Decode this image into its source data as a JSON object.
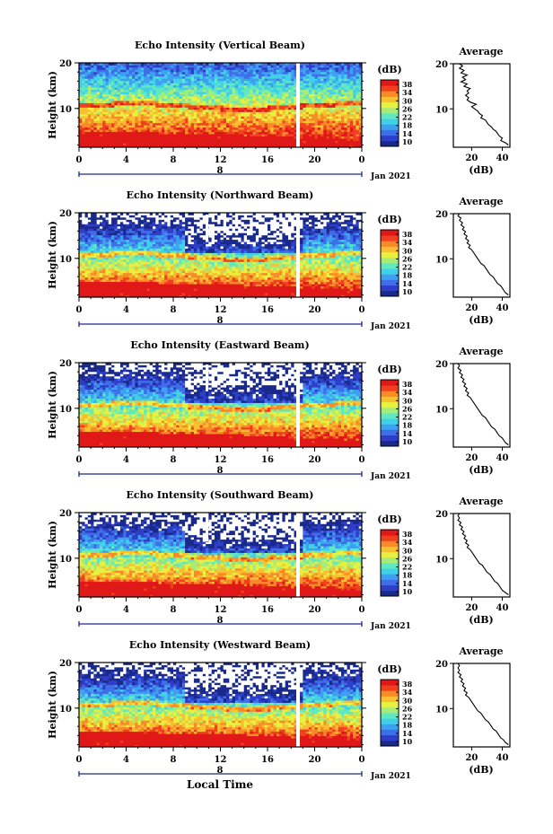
{
  "chart_data": [
    {
      "type": "heatmap",
      "title": "Echo Intensity (Vertical Beam)",
      "ylabel": "Height (km)",
      "y_ticks": [
        "20",
        "10"
      ],
      "x_ticks": [
        "0",
        "4",
        "8",
        "12",
        "16",
        "20",
        "0"
      ],
      "date_marker": "8",
      "date_label": "Jan 2021",
      "colorbar_label": "(dB)",
      "colorbar_ticks": [
        "38",
        "34",
        "30",
        "26",
        "22",
        "18",
        "14",
        "10"
      ],
      "profile": {
        "title": "Average",
        "xlabel": "(dB)",
        "x_ticks": [
          "20",
          "40"
        ],
        "y_ticks": [
          "20",
          "10"
        ],
        "xlim": [
          8,
          45
        ],
        "ylim": [
          1.5,
          20
        ],
        "points": [
          [
            12,
            20
          ],
          [
            14,
            19.5
          ],
          [
            12,
            19
          ],
          [
            15,
            18.5
          ],
          [
            13,
            18
          ],
          [
            17,
            17.5
          ],
          [
            14,
            17
          ],
          [
            16,
            16.5
          ],
          [
            13,
            16
          ],
          [
            17,
            15.5
          ],
          [
            15,
            15
          ],
          [
            19,
            14.5
          ],
          [
            17,
            14
          ],
          [
            18,
            13.5
          ],
          [
            16,
            13
          ],
          [
            18,
            12.5
          ],
          [
            17,
            12
          ],
          [
            19,
            11.5
          ],
          [
            23,
            11
          ],
          [
            20,
            10.5
          ],
          [
            22,
            10
          ],
          [
            24,
            9.5
          ],
          [
            25,
            9
          ],
          [
            27,
            8.5
          ],
          [
            26,
            8
          ],
          [
            29,
            7.5
          ],
          [
            30,
            7
          ],
          [
            31,
            6.5
          ],
          [
            33,
            6
          ],
          [
            34,
            5.5
          ],
          [
            36,
            5
          ],
          [
            37,
            4.5
          ],
          [
            38,
            4
          ],
          [
            40,
            3.5
          ],
          [
            39,
            3
          ],
          [
            42,
            2.5
          ],
          [
            44,
            2
          ]
        ]
      }
    },
    {
      "type": "heatmap",
      "title": "Echo Intensity (Northward Beam)",
      "ylabel": "Height (km)",
      "y_ticks": [
        "20",
        "10"
      ],
      "x_ticks": [
        "0",
        "4",
        "8",
        "12",
        "16",
        "20",
        "0"
      ],
      "date_marker": "8",
      "date_label": "Jan 2021",
      "colorbar_label": "(dB)",
      "colorbar_ticks": [
        "38",
        "34",
        "30",
        "26",
        "22",
        "18",
        "14",
        "10"
      ],
      "profile": {
        "title": "Average",
        "xlabel": "(dB)",
        "x_ticks": [
          "20",
          "40"
        ],
        "y_ticks": [
          "20",
          "10"
        ],
        "xlim": [
          8,
          45
        ],
        "ylim": [
          1.5,
          20
        ],
        "points": [
          [
            12,
            20
          ],
          [
            11,
            19.5
          ],
          [
            13,
            19
          ],
          [
            12,
            18.5
          ],
          [
            14,
            18
          ],
          [
            13,
            17.5
          ],
          [
            15,
            17
          ],
          [
            14,
            16.5
          ],
          [
            16,
            16
          ],
          [
            15,
            15.5
          ],
          [
            17,
            15
          ],
          [
            16,
            14.5
          ],
          [
            18,
            14
          ],
          [
            17,
            13.5
          ],
          [
            19,
            13
          ],
          [
            18,
            12.5
          ],
          [
            20,
            12
          ],
          [
            21,
            11.5
          ],
          [
            22,
            11
          ],
          [
            23,
            10.5
          ],
          [
            24,
            10
          ],
          [
            25,
            9.5
          ],
          [
            26,
            9
          ],
          [
            28,
            8.5
          ],
          [
            29,
            8
          ],
          [
            30,
            7.5
          ],
          [
            31,
            7
          ],
          [
            32,
            6.5
          ],
          [
            34,
            6
          ],
          [
            35,
            5.5
          ],
          [
            36,
            5
          ],
          [
            37,
            4.5
          ],
          [
            39,
            4
          ],
          [
            40,
            3.5
          ],
          [
            41,
            3
          ],
          [
            42,
            2.5
          ],
          [
            44,
            2
          ]
        ]
      }
    },
    {
      "type": "heatmap",
      "title": "Echo Intensity (Eastward Beam)",
      "ylabel": "Height (km)",
      "y_ticks": [
        "20",
        "10"
      ],
      "x_ticks": [
        "0",
        "4",
        "8",
        "12",
        "16",
        "20",
        "0"
      ],
      "date_marker": "8",
      "date_label": "Jan 2021",
      "colorbar_label": "(dB)",
      "colorbar_ticks": [
        "38",
        "34",
        "30",
        "26",
        "22",
        "18",
        "14",
        "10"
      ],
      "profile": {
        "title": "Average",
        "xlabel": "(dB)",
        "x_ticks": [
          "20",
          "40"
        ],
        "y_ticks": [
          "20",
          "10"
        ],
        "xlim": [
          8,
          45
        ],
        "ylim": [
          1.5,
          20
        ],
        "points": [
          [
            11,
            20
          ],
          [
            12,
            19.5
          ],
          [
            11,
            19
          ],
          [
            13,
            18.5
          ],
          [
            12,
            18
          ],
          [
            14,
            17.5
          ],
          [
            13,
            17
          ],
          [
            15,
            16.5
          ],
          [
            14,
            16
          ],
          [
            16,
            15.5
          ],
          [
            15,
            15
          ],
          [
            17,
            14.5
          ],
          [
            16,
            14
          ],
          [
            18,
            13.5
          ],
          [
            17,
            13
          ],
          [
            19,
            12.5
          ],
          [
            20,
            12
          ],
          [
            21,
            11.5
          ],
          [
            22,
            11
          ],
          [
            23,
            10.5
          ],
          [
            24,
            10
          ],
          [
            25,
            9.5
          ],
          [
            26,
            9
          ],
          [
            27,
            8.5
          ],
          [
            29,
            8
          ],
          [
            30,
            7.5
          ],
          [
            31,
            7
          ],
          [
            32,
            6.5
          ],
          [
            33,
            6
          ],
          [
            35,
            5.5
          ],
          [
            36,
            5
          ],
          [
            37,
            4.5
          ],
          [
            38,
            4
          ],
          [
            40,
            3.5
          ],
          [
            41,
            3
          ],
          [
            42,
            2.5
          ],
          [
            44,
            2
          ]
        ]
      }
    },
    {
      "type": "heatmap",
      "title": "Echo Intensity (Southward Beam)",
      "ylabel": "Height (km)",
      "y_ticks": [
        "20",
        "10"
      ],
      "x_ticks": [
        "0",
        "4",
        "8",
        "12",
        "16",
        "20",
        "0"
      ],
      "date_marker": "8",
      "date_label": "Jan 2021",
      "colorbar_label": "(dB)",
      "colorbar_ticks": [
        "38",
        "34",
        "30",
        "26",
        "22",
        "18",
        "14",
        "10"
      ],
      "profile": {
        "title": "Average",
        "xlabel": "(dB)",
        "x_ticks": [
          "20",
          "40"
        ],
        "y_ticks": [
          "20",
          "10"
        ],
        "xlim": [
          8,
          45
        ],
        "ylim": [
          1.5,
          20
        ],
        "points": [
          [
            12,
            20
          ],
          [
            11,
            19.5
          ],
          [
            12,
            19
          ],
          [
            11,
            18.5
          ],
          [
            13,
            18
          ],
          [
            12,
            17.5
          ],
          [
            14,
            17
          ],
          [
            13,
            16.5
          ],
          [
            15,
            16
          ],
          [
            14,
            15.5
          ],
          [
            16,
            15
          ],
          [
            15,
            14.5
          ],
          [
            17,
            14
          ],
          [
            16,
            13.5
          ],
          [
            18,
            13
          ],
          [
            17,
            12.5
          ],
          [
            19,
            12
          ],
          [
            20,
            11.5
          ],
          [
            21,
            11
          ],
          [
            22,
            10.5
          ],
          [
            23,
            10
          ],
          [
            24,
            9.5
          ],
          [
            25,
            9
          ],
          [
            27,
            8.5
          ],
          [
            28,
            8
          ],
          [
            29,
            7.5
          ],
          [
            30,
            7
          ],
          [
            32,
            6.5
          ],
          [
            33,
            6
          ],
          [
            34,
            5.5
          ],
          [
            35,
            5
          ],
          [
            37,
            4.5
          ],
          [
            38,
            4
          ],
          [
            39,
            3.5
          ],
          [
            40,
            3
          ],
          [
            42,
            2.5
          ],
          [
            44,
            2
          ]
        ]
      }
    },
    {
      "type": "heatmap",
      "title": "Echo Intensity (Westward Beam)",
      "ylabel": "Height (km)",
      "y_ticks": [
        "20",
        "10"
      ],
      "x_ticks": [
        "0",
        "4",
        "8",
        "12",
        "16",
        "20",
        "0"
      ],
      "date_marker": "8",
      "date_label": "Jan 2021",
      "colorbar_label": "(dB)",
      "colorbar_ticks": [
        "38",
        "34",
        "30",
        "26",
        "22",
        "18",
        "14",
        "10"
      ],
      "profile": {
        "title": "Average",
        "xlabel": "(dB)",
        "x_ticks": [
          "20",
          "40"
        ],
        "y_ticks": [
          "20",
          "10"
        ],
        "xlim": [
          8,
          45
        ],
        "ylim": [
          1.5,
          20
        ],
        "points": [
          [
            11,
            20
          ],
          [
            12,
            19.5
          ],
          [
            11,
            19
          ],
          [
            12,
            18.5
          ],
          [
            11,
            18
          ],
          [
            13,
            17.5
          ],
          [
            12,
            17
          ],
          [
            14,
            16.5
          ],
          [
            13,
            16
          ],
          [
            15,
            15.5
          ],
          [
            14,
            15
          ],
          [
            16,
            14.5
          ],
          [
            15,
            14
          ],
          [
            17,
            13.5
          ],
          [
            16,
            13
          ],
          [
            18,
            12.5
          ],
          [
            19,
            12
          ],
          [
            20,
            11.5
          ],
          [
            21,
            11
          ],
          [
            22,
            10.5
          ],
          [
            23,
            10
          ],
          [
            24,
            9.5
          ],
          [
            26,
            9
          ],
          [
            27,
            8.5
          ],
          [
            28,
            8
          ],
          [
            29,
            7.5
          ],
          [
            31,
            7
          ],
          [
            32,
            6.5
          ],
          [
            33,
            6
          ],
          [
            34,
            5.5
          ],
          [
            36,
            5
          ],
          [
            37,
            4.5
          ],
          [
            38,
            4
          ],
          [
            39,
            3.5
          ],
          [
            41,
            3
          ],
          [
            42,
            2.5
          ],
          [
            44,
            2
          ]
        ]
      }
    }
  ],
  "xlabel": "Local Time",
  "colors": {
    "colormap": [
      "#1a2a8c",
      "#2e3ec8",
      "#3f6ee8",
      "#3ea0f0",
      "#40d0e8",
      "#60e8c0",
      "#a8ec78",
      "#e8f040",
      "#f8c030",
      "#f88a28",
      "#f04020",
      "#e01818"
    ],
    "gap": "#ffffff"
  }
}
